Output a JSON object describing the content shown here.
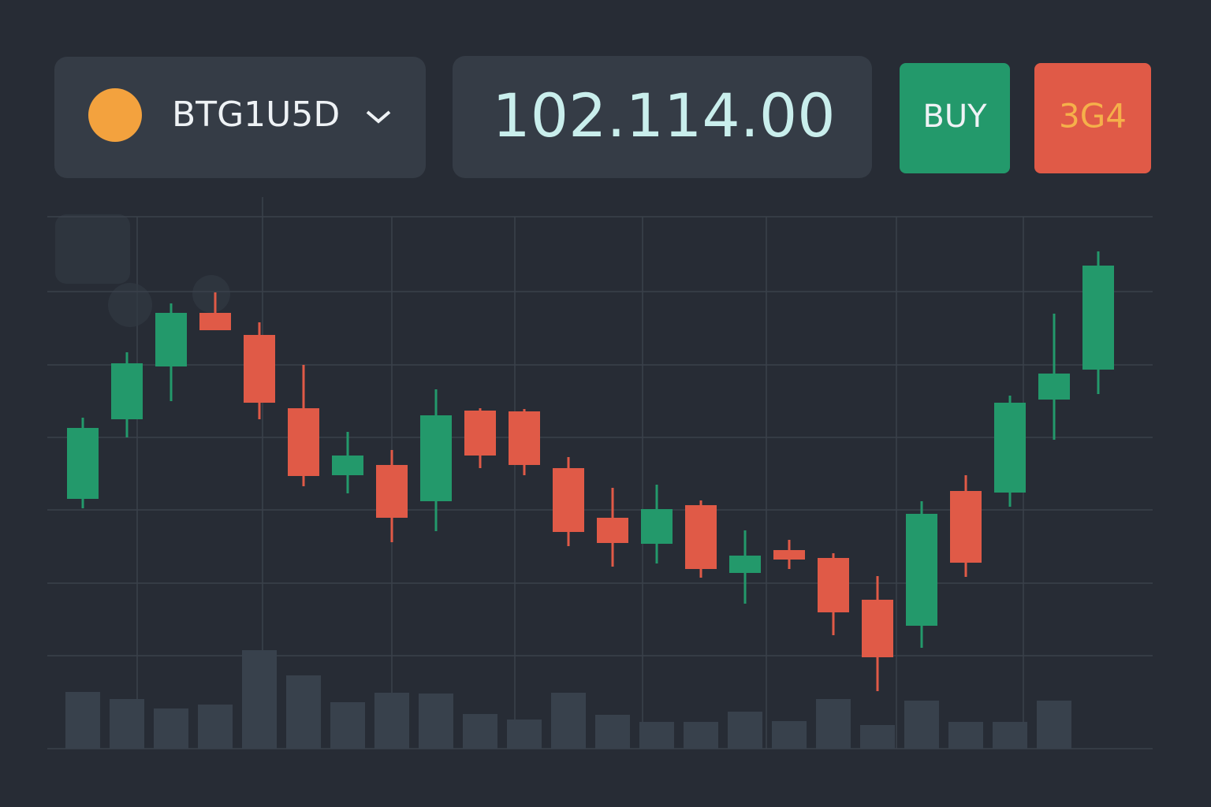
{
  "header": {
    "pair": "BTG1U5D",
    "price": "102.114.00",
    "buy": "BUY",
    "sell": "3G4"
  },
  "chart_data": {
    "type": "candlestick",
    "open": [
      317,
      418,
      485,
      553,
      525,
      432,
      347,
      360,
      314,
      429,
      428,
      356,
      293,
      260,
      309,
      223,
      252,
      242,
      189,
      156,
      327,
      325,
      443,
      481
    ],
    "high": [
      420,
      503,
      565,
      579,
      541,
      487,
      402,
      379,
      456,
      432,
      431,
      370,
      331,
      335,
      315,
      277,
      265,
      248,
      219,
      314,
      347,
      448,
      552,
      631
    ],
    "low": [
      305,
      395,
      441,
      531,
      418,
      333,
      324,
      262,
      276,
      356,
      347,
      257,
      231,
      235,
      217,
      184,
      228,
      144,
      73,
      128,
      218,
      307,
      392,
      450
    ],
    "close": [
      407,
      489,
      553,
      531,
      439,
      346,
      372,
      293,
      423,
      372,
      360,
      275,
      261,
      304,
      228,
      245,
      240,
      173,
      116,
      298,
      236,
      439,
      476,
      613
    ],
    "volume": [
      72,
      63,
      51,
      56,
      125,
      93,
      59,
      71,
      70,
      44,
      37,
      71,
      43,
      34,
      34,
      47,
      35,
      63,
      30,
      61,
      34,
      34,
      61,
      null
    ],
    "up_color": "#23996b",
    "down_color": "#e05a47",
    "volume_color": "#38414c",
    "ylim": [
      0,
      675
    ],
    "yticks": [
      0,
      118,
      210,
      303,
      395,
      487,
      580,
      675
    ],
    "grid": true
  }
}
